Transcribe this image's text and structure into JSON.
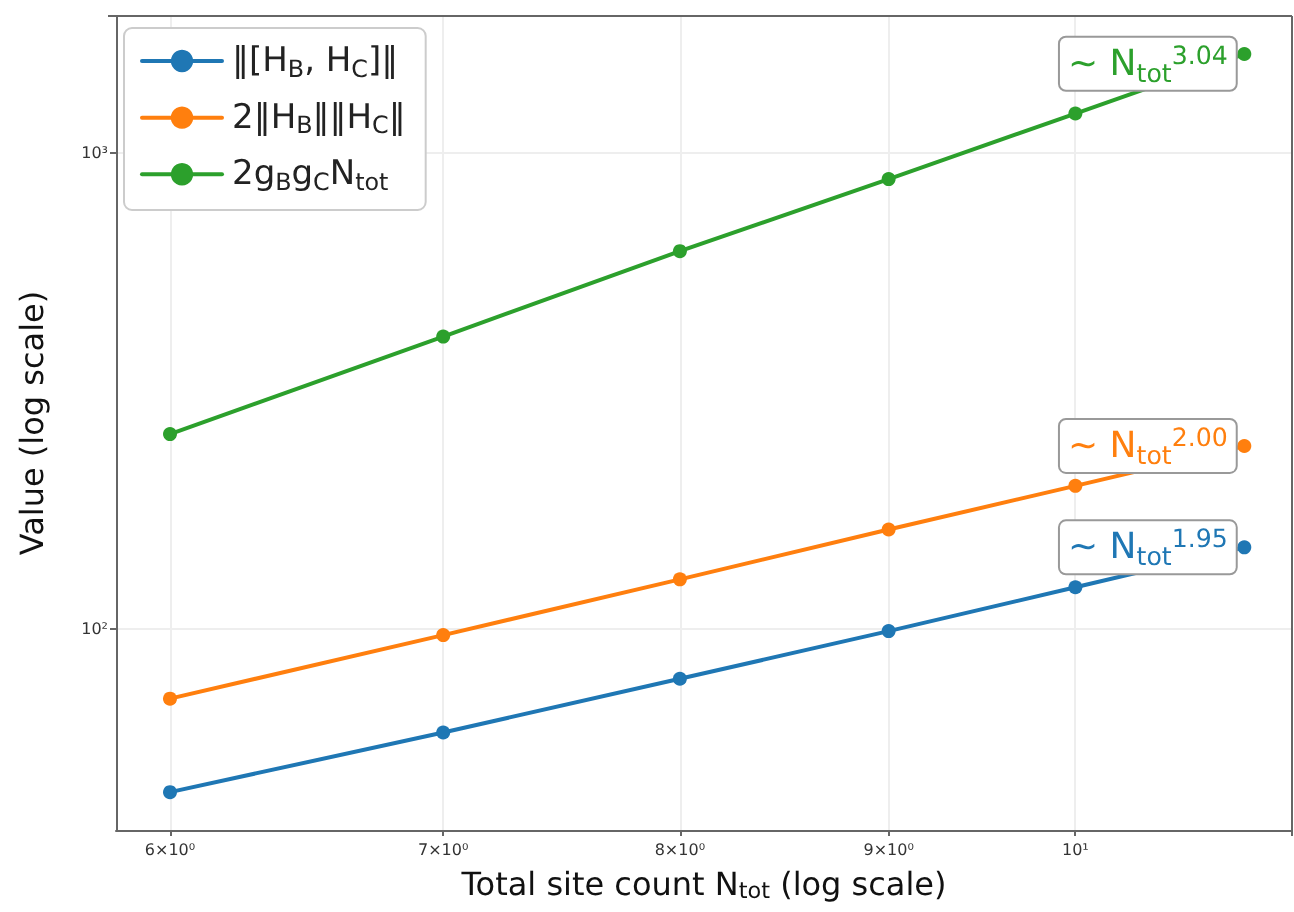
{
  "chart_data": {
    "type": "line",
    "xlabel": "Total site count N$_{tot}$ (log scale)",
    "ylabel": "Value (log scale)",
    "x": [
      6,
      7,
      8,
      9,
      10,
      11
    ],
    "series": [
      {
        "name": "‖[H$_{B}$, H$_{C}$]‖",
        "color": "#1f77b4",
        "values": [
          45.4,
          60.6,
          78.6,
          99,
          122.4,
          148.5
        ]
      },
      {
        "name": "2‖H$_{B}$‖‖H$_{C}$‖",
        "color": "#ff7f0e",
        "values": [
          71.4,
          97.1,
          127.2,
          161.9,
          200,
          242.6
        ]
      },
      {
        "name": "2g$_{B}$g$_{C}$N$_{tot}$",
        "color": "#2ca02c",
        "values": [
          257,
          412,
          623,
          883,
          1213,
          1618
        ]
      }
    ],
    "log": "xy",
    "xlim": [
      5.82,
      11.3
    ],
    "ylim": [
      37.8,
      1945
    ],
    "xticks": [
      {
        "value": 6,
        "label": "6×10⁰"
      },
      {
        "value": 7,
        "label": "7×10⁰"
      },
      {
        "value": 8,
        "label": "8×10⁰"
      },
      {
        "value": 9,
        "label": "9×10⁰"
      },
      {
        "value": 10,
        "label": "10¹"
      }
    ],
    "yticks": [
      {
        "value": 100,
        "label": "10²"
      },
      {
        "value": 1000,
        "label": "10³"
      }
    ],
    "grid": true,
    "legend": "top left",
    "marker": "circle",
    "line_style": "solid",
    "annotations": [
      "∼ N$_{tot}$$^{1.95}$",
      "∼ N$_{tot}$$^{2.00}$",
      "∼ N$_{tot}$$^{3.04}$"
    ]
  }
}
